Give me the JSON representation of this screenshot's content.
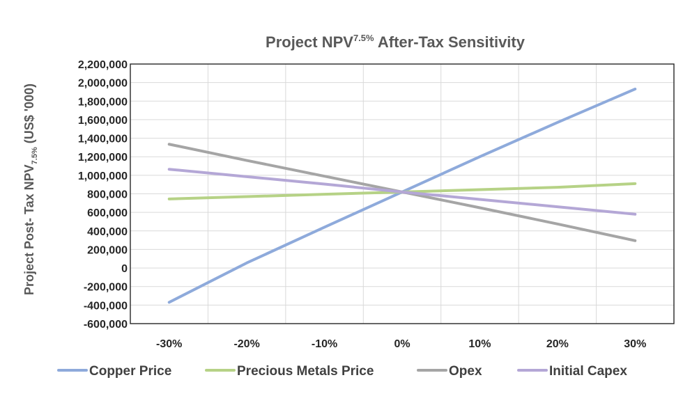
{
  "chart_data": {
    "type": "line",
    "title_main": "Project NPV",
    "title_sup": "7.5%",
    "title_rest": " After-Tax Sensitivity",
    "ylabel_main": "Project Post- Tax NPV",
    "ylabel_sub": "7.5%",
    "ylabel_rest": " (US$ '000)",
    "x": [
      -30,
      -20,
      -10,
      0,
      10,
      20,
      30
    ],
    "x_tick_labels": [
      "-30%",
      "-20%",
      "-10%",
      "0%",
      "10%",
      "20%",
      "30%"
    ],
    "xlim": [
      -35,
      35
    ],
    "ylim": [
      -600000,
      2200000
    ],
    "y_ticks": [
      -600000,
      -400000,
      -200000,
      0,
      200000,
      400000,
      600000,
      800000,
      1000000,
      1200000,
      1400000,
      1600000,
      1800000,
      2000000,
      2200000
    ],
    "y_tick_labels": [
      "-600,000",
      "-400,000",
      "-200,000",
      "0",
      "200,000",
      "400,000",
      "600,000",
      "800,000",
      "1,000,000",
      "1,200,000",
      "1,400,000",
      "1,600,000",
      "1,800,000",
      "2,000,000",
      "2,200,000"
    ],
    "grid": true,
    "legend_position": "bottom",
    "series": [
      {
        "name": "Copper Price",
        "color": "#8eaadb",
        "values": [
          -370000,
          55000,
          440000,
          820000,
          1200000,
          1570000,
          1930000
        ]
      },
      {
        "name": "Precious Metals Price",
        "color": "#b6d286",
        "values": [
          745000,
          770000,
          795000,
          820000,
          845000,
          870000,
          910000
        ]
      },
      {
        "name": "Opex",
        "color": "#a5a5a5",
        "values": [
          1335000,
          1160000,
          990000,
          820000,
          650000,
          475000,
          295000
        ]
      },
      {
        "name": "Initial Capex",
        "color": "#b4a7d6",
        "values": [
          1065000,
          985000,
          905000,
          820000,
          740000,
          660000,
          580000
        ]
      }
    ]
  }
}
